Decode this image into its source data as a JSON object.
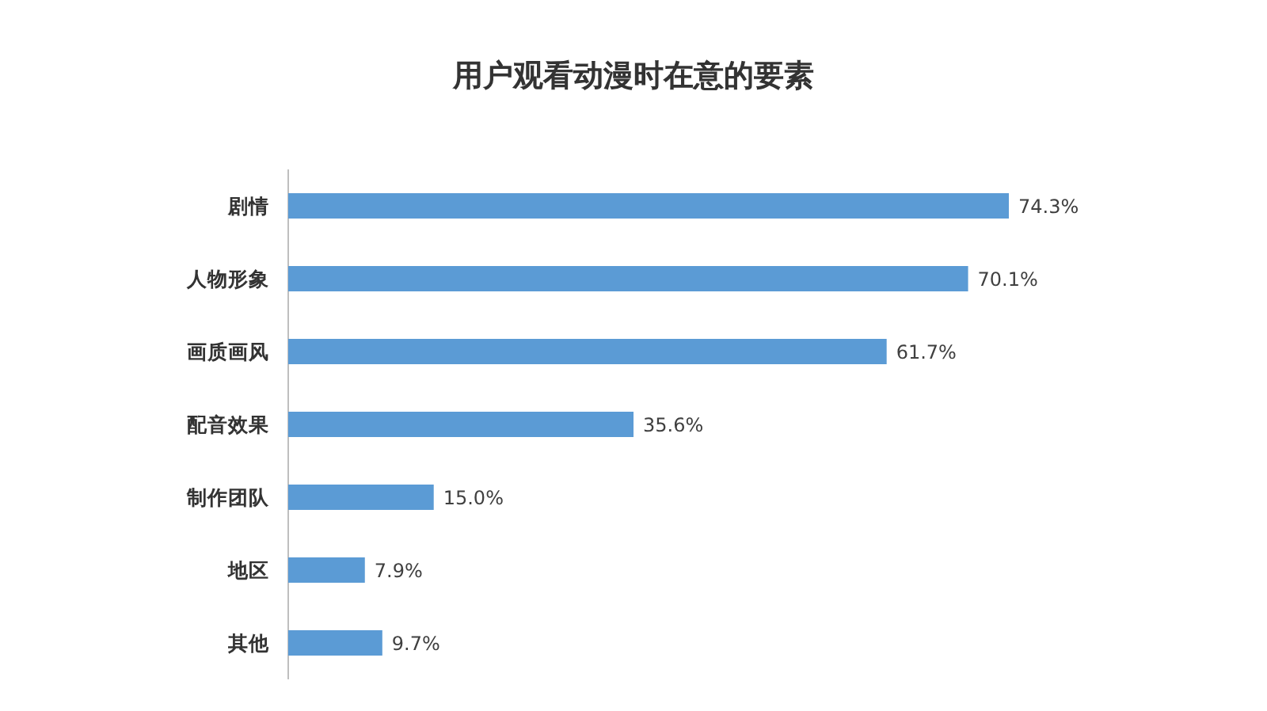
{
  "chart_data": {
    "type": "bar",
    "orientation": "horizontal",
    "title": "用户观看动漫时在意的要素",
    "categories": [
      "剧情",
      "人物形象",
      "画质画风",
      "配音效果",
      "制作团队",
      "地区",
      "其他"
    ],
    "values": [
      74.3,
      70.1,
      61.7,
      35.6,
      15.0,
      7.9,
      9.7
    ],
    "value_labels": [
      "74.3%",
      "70.1%",
      "61.7%",
      "35.6%",
      "15.0%",
      "7.9%",
      "9.7%"
    ],
    "color": "#5b9bd5"
  }
}
